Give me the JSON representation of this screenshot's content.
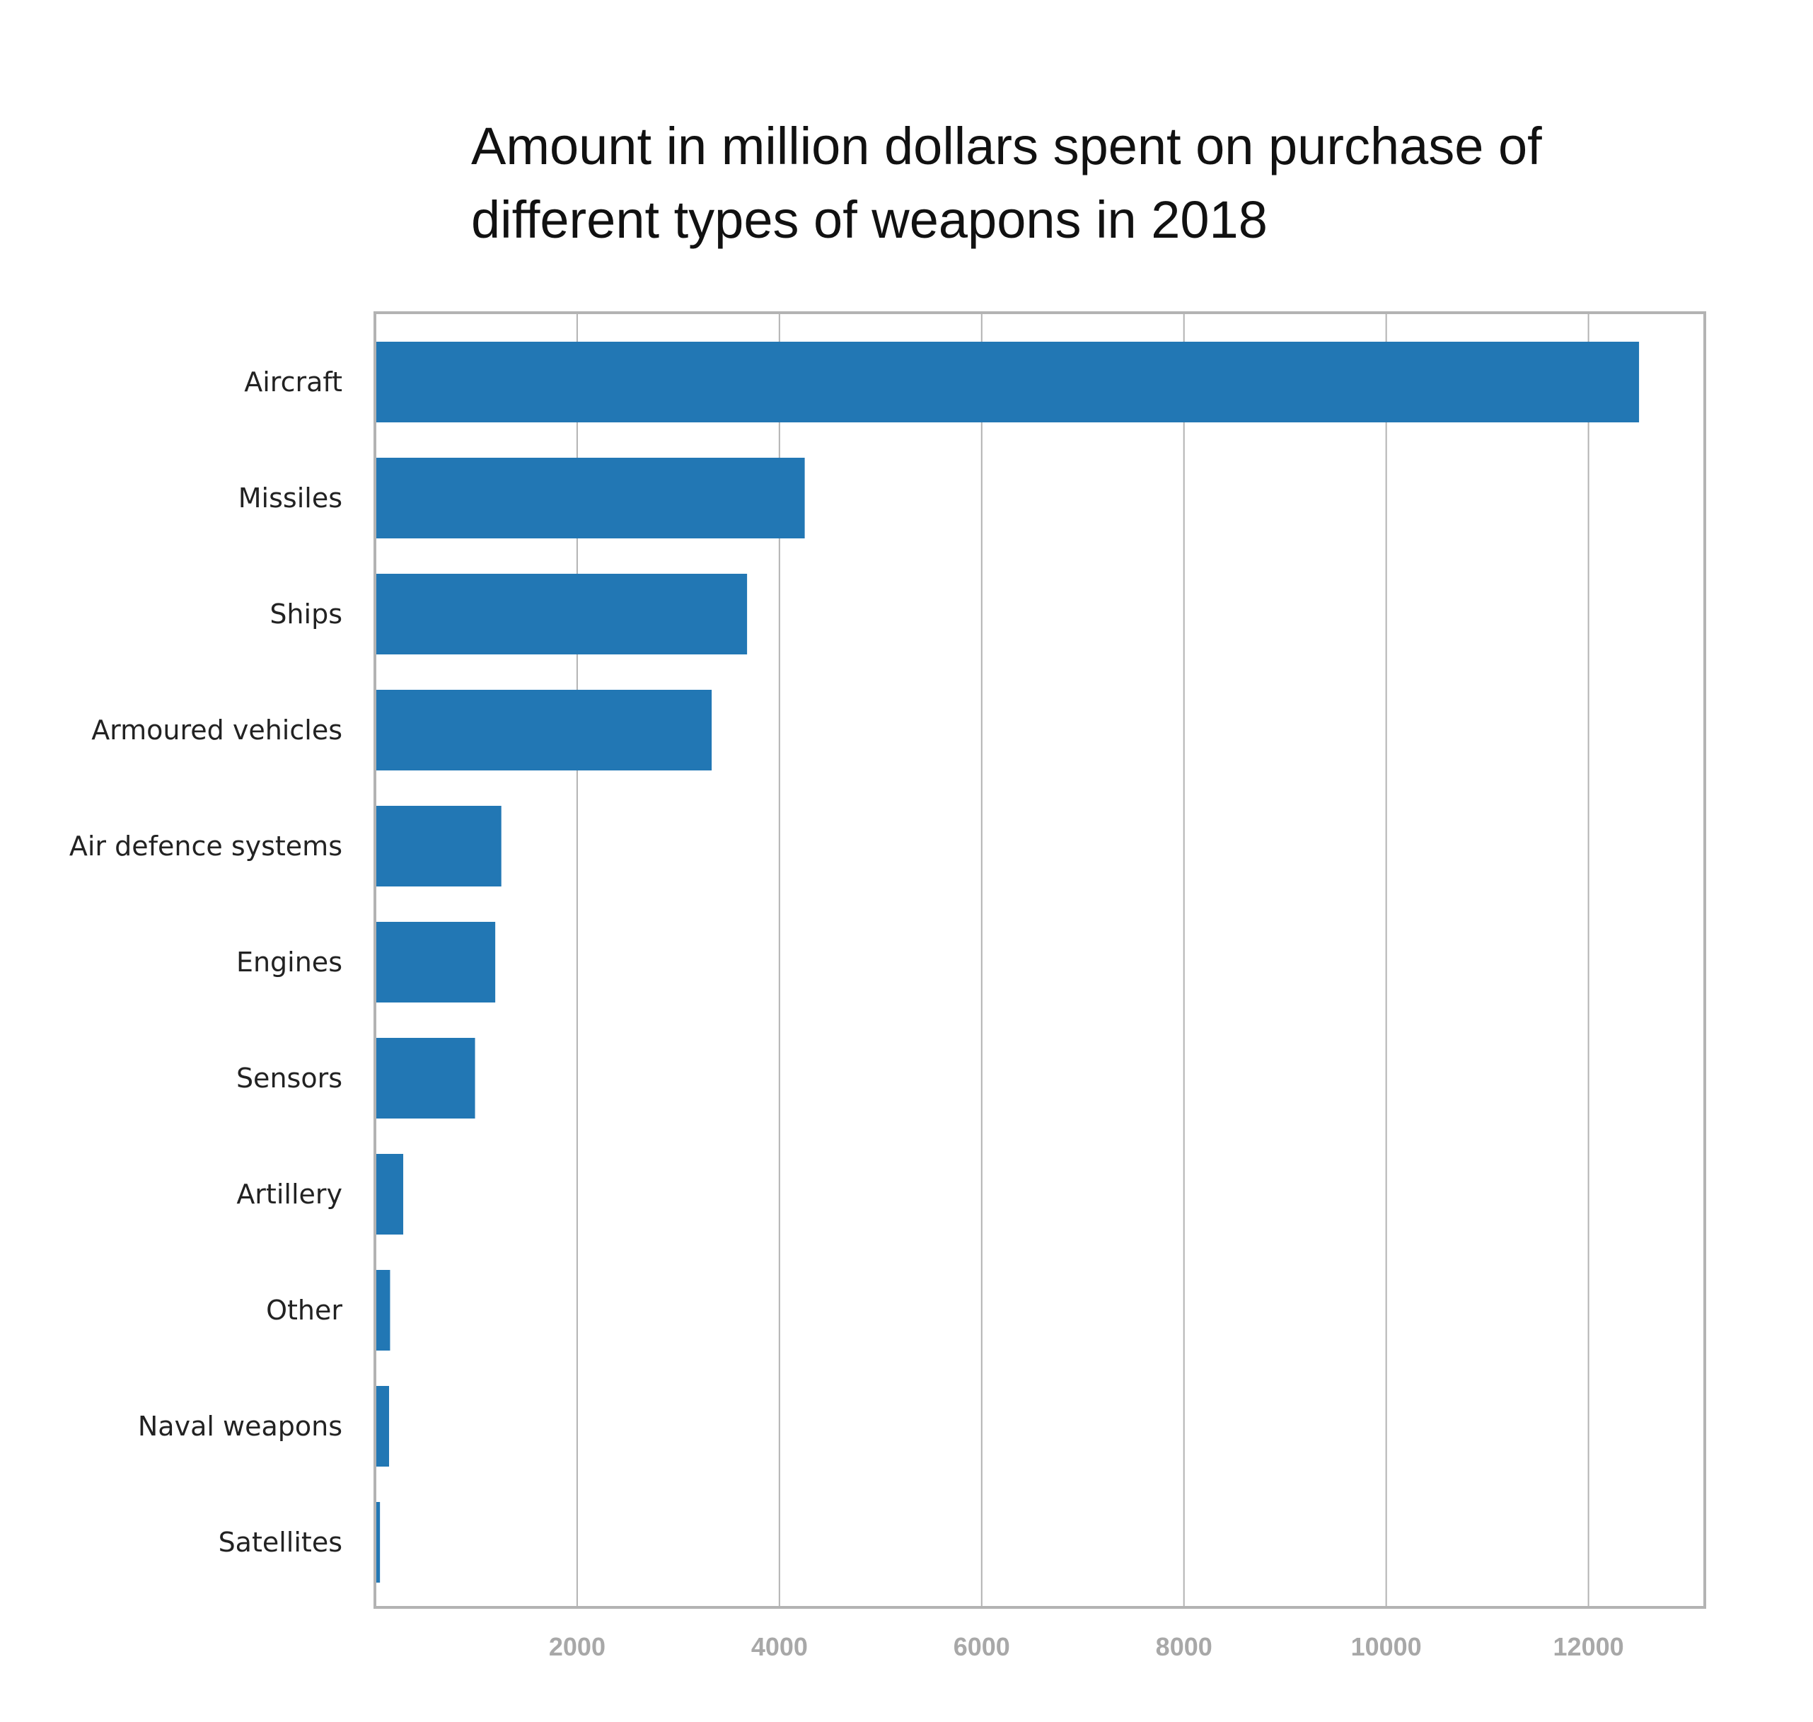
{
  "chart_data": {
    "type": "bar",
    "orientation": "horizontal",
    "title_lines": [
      "Amount in million dollars spent on purchase of",
      "different types of weapons in 2018"
    ],
    "xlabel": "",
    "ylabel": "",
    "categories": [
      "Aircraft",
      "Missiles",
      "Ships",
      "Armoured vehicles",
      "Air defence systems",
      "Engines",
      "Sensors",
      "Artillery",
      "Other",
      "Naval weapons",
      "Satellites"
    ],
    "values": [
      12500,
      4250,
      3680,
      3330,
      1250,
      1190,
      990,
      280,
      150,
      140,
      50
    ],
    "xlim": [
      0,
      13150
    ],
    "x_ticks": [
      2000,
      4000,
      6000,
      8000,
      10000,
      12000
    ],
    "grid": true,
    "legend": "none",
    "bar_color": "#2277b4",
    "grid_color": "#b3b3b3",
    "frame_color": "#b3b3b3",
    "tick_label_color": "#a8a8a8"
  }
}
